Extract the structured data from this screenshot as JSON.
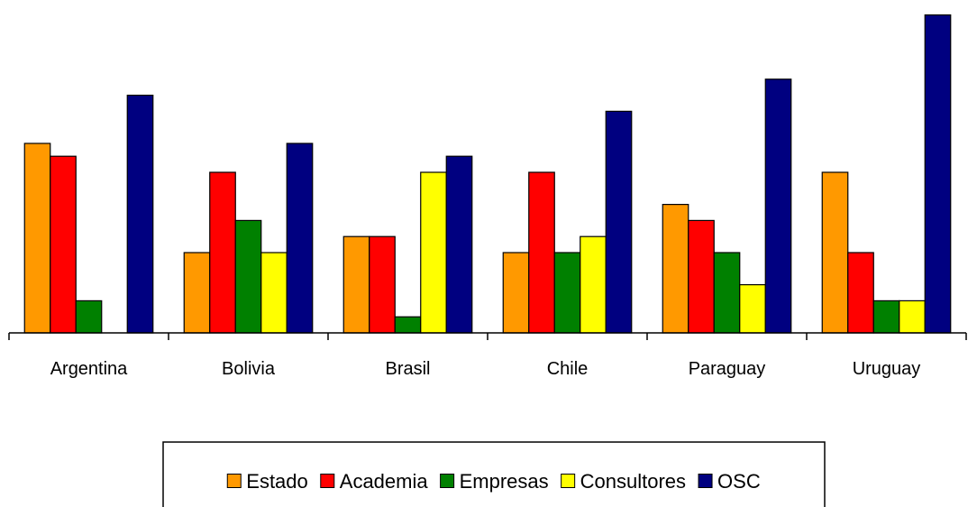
{
  "chart_data": {
    "type": "bar",
    "title": "",
    "xlabel": "",
    "ylabel": "",
    "ylim": [
      0,
      20
    ],
    "grid": false,
    "legend_position": "bottom",
    "categories": [
      "Argentina",
      "Bolivia",
      "Brasil",
      "Chile",
      "Paraguay",
      "Uruguay"
    ],
    "series": [
      {
        "name": "Estado",
        "color": "#FF9900",
        "values": [
          11.8,
          5.0,
          6.0,
          5.0,
          8.0,
          10.0
        ]
      },
      {
        "name": "Academia",
        "color": "#FF0000",
        "values": [
          11.0,
          10.0,
          6.0,
          10.0,
          7.0,
          5.0
        ]
      },
      {
        "name": "Empresas",
        "color": "#008000",
        "values": [
          2.0,
          7.0,
          1.0,
          5.0,
          5.0,
          2.0
        ]
      },
      {
        "name": "Consultores",
        "color": "#FFFF00",
        "values": [
          0,
          5.0,
          10.0,
          6.0,
          3.0,
          2.0
        ]
      },
      {
        "name": "OSC",
        "color": "#000080",
        "values": [
          14.8,
          11.8,
          11.0,
          13.8,
          15.8,
          19.8
        ]
      }
    ]
  }
}
